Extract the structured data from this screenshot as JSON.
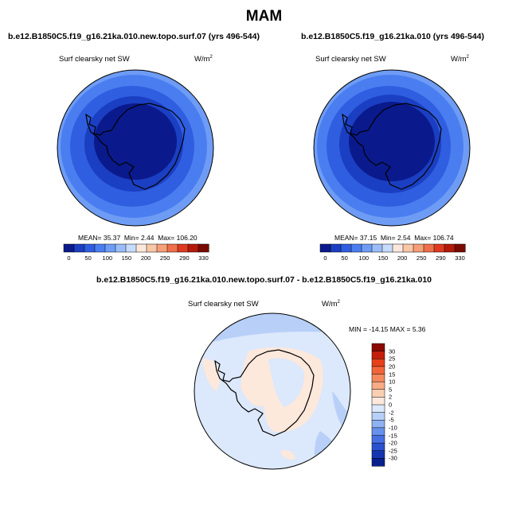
{
  "figure": {
    "title": "MAM"
  },
  "panels": [
    {
      "case": "b.e12.B1850C5.f19_g16.21ka.010.new.topo.surf.07 (yrs 496-544)",
      "variable": "Surf clearsky net SW",
      "units_base": "W/m",
      "units_exp": "2",
      "stats": {
        "mean_label": "MEAN=",
        "mean": "35.37",
        "min_label": "Min=",
        "min": "2.44",
        "max_label": "Max=",
        "max": "106.20"
      }
    },
    {
      "case": "b.e12.B1850C5.f19_g16.21ka.010 (yrs 496-544)",
      "variable": "Surf clearsky net SW",
      "units_base": "W/m",
      "units_exp": "2",
      "stats": {
        "mean_label": "MEAN=",
        "mean": "37.15",
        "min_label": "Min=",
        "min": "2.54",
        "max_label": "Max=",
        "max": "106.74"
      }
    }
  ],
  "diff_panel": {
    "title": "b.e12.B1850C5.f19_g16.21ka.010.new.topo.surf.07 - b.e12.B1850C5.f19_g16.21ka.010",
    "variable": "Surf clearsky net SW",
    "units_base": "W/m",
    "units_exp": "2",
    "minmax": "MIN = -14.15 MAX =   5.36"
  },
  "abs_colorbar": {
    "colors": [
      "#0a1a8c",
      "#1b3fc2",
      "#2f5ee0",
      "#4a7ef0",
      "#6e9cf5",
      "#9bbcf9",
      "#c7dbfc",
      "#fbe8dc",
      "#f8c7a8",
      "#f59f78",
      "#ef6f4a",
      "#de3a20",
      "#b41a0a",
      "#7a0a00"
    ],
    "labels": [
      "0",
      "50",
      "100",
      "150",
      "200",
      "250",
      "290",
      "330"
    ]
  },
  "diff_colorbar": {
    "colors": [
      "#8a0a00",
      "#c41e0a",
      "#e5401a",
      "#f2653a",
      "#f58a5e",
      "#f7ac86",
      "#f9cfb2",
      "#fde8dc",
      "#dce8fb",
      "#b8d0f8",
      "#8fb2f3",
      "#6791ec",
      "#4670e2",
      "#2a52cf",
      "#1535b0",
      "#07208c"
    ],
    "labels": [
      "30",
      "25",
      "20",
      "15",
      "10",
      "5",
      "2",
      "0",
      "-2",
      "-5",
      "-10",
      "-15",
      "-20",
      "-25",
      "-30"
    ]
  }
}
